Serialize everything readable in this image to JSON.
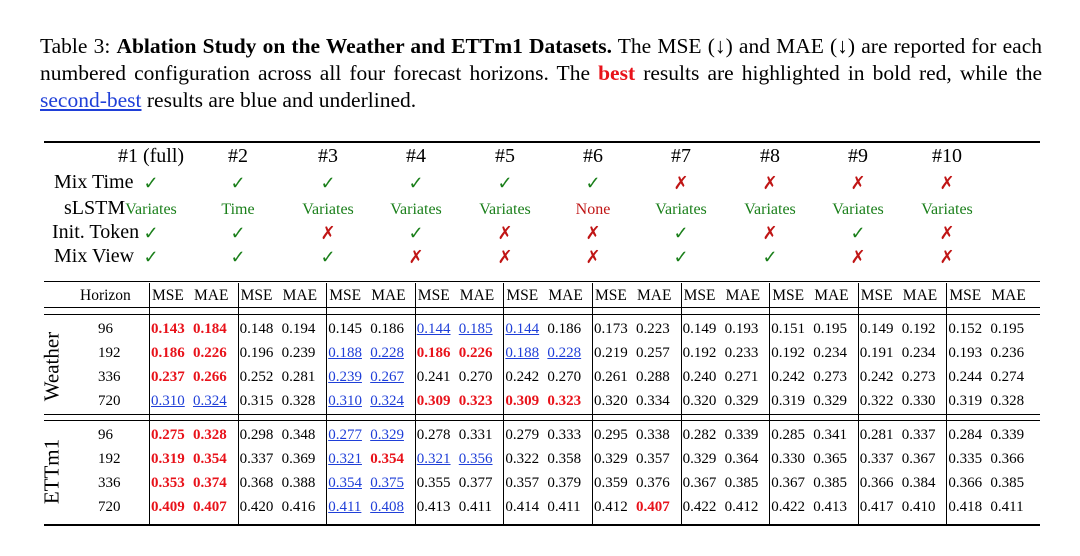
{
  "caption": {
    "prefix": "Table 3: ",
    "title": "Ablation Study on the Weather and ETTm1 Datasets.",
    "text1": " The MSE (↓) and MAE (↓) are reported for each numbered configuration across all four forecast horizons. The ",
    "best_word": "best",
    "text2": " results are highlighted in bold red, while the ",
    "second_word": "second-best",
    "text3": " results are blue and underlined."
  },
  "configs": [
    "#1 (full)",
    "#2",
    "#3",
    "#4",
    "#5",
    "#6",
    "#7",
    "#8",
    "#9",
    "#10"
  ],
  "row_labels": {
    "mix_time": "Mix Time",
    "slstm": "sLSTM",
    "init_token": "Init. Token",
    "mix_view": "Mix View",
    "horizon": "Horizon"
  },
  "mix_time": [
    "✓",
    "✓",
    "✓",
    "✓",
    "✓",
    "✓",
    "✗",
    "✗",
    "✗",
    "✗"
  ],
  "slstm": [
    "Variates",
    "Time",
    "Variates",
    "Variates",
    "Variates",
    "None",
    "Variates",
    "Variates",
    "Variates",
    "Variates"
  ],
  "init_token": [
    "✓",
    "✓",
    "✗",
    "✓",
    "✗",
    "✗",
    "✓",
    "✗",
    "✓",
    "✗"
  ],
  "mix_view": [
    "✓",
    "✓",
    "✓",
    "✗",
    "✗",
    "✗",
    "✓",
    "✓",
    "✗",
    "✗"
  ],
  "metric_labels": {
    "mse": "MSE",
    "mae": "MAE"
  },
  "groups": [
    {
      "name": "Weather",
      "rows": [
        {
          "h": "96",
          "v": [
            [
              "0.143",
              "b"
            ],
            [
              "0.184",
              "b"
            ],
            [
              "0.148",
              ""
            ],
            [
              "0.194",
              ""
            ],
            [
              "0.145",
              ""
            ],
            [
              "0.186",
              ""
            ],
            [
              "0.144",
              "s"
            ],
            [
              "0.185",
              "s"
            ],
            [
              "0.144",
              "s"
            ],
            [
              "0.186",
              ""
            ],
            [
              "0.173",
              ""
            ],
            [
              "0.223",
              ""
            ],
            [
              "0.149",
              ""
            ],
            [
              "0.193",
              ""
            ],
            [
              "0.151",
              ""
            ],
            [
              "0.195",
              ""
            ],
            [
              "0.149",
              ""
            ],
            [
              "0.192",
              ""
            ],
            [
              "0.152",
              ""
            ],
            [
              "0.195",
              ""
            ]
          ]
        },
        {
          "h": "192",
          "v": [
            [
              "0.186",
              "b"
            ],
            [
              "0.226",
              "b"
            ],
            [
              "0.196",
              ""
            ],
            [
              "0.239",
              ""
            ],
            [
              "0.188",
              "s"
            ],
            [
              "0.228",
              "s"
            ],
            [
              "0.186",
              "b"
            ],
            [
              "0.226",
              "b"
            ],
            [
              "0.188",
              "s"
            ],
            [
              "0.228",
              "s"
            ],
            [
              "0.219",
              ""
            ],
            [
              "0.257",
              ""
            ],
            [
              "0.192",
              ""
            ],
            [
              "0.233",
              ""
            ],
            [
              "0.192",
              ""
            ],
            [
              "0.234",
              ""
            ],
            [
              "0.191",
              ""
            ],
            [
              "0.234",
              ""
            ],
            [
              "0.193",
              ""
            ],
            [
              "0.236",
              ""
            ]
          ]
        },
        {
          "h": "336",
          "v": [
            [
              "0.237",
              "b"
            ],
            [
              "0.266",
              "b"
            ],
            [
              "0.252",
              ""
            ],
            [
              "0.281",
              ""
            ],
            [
              "0.239",
              "s"
            ],
            [
              "0.267",
              "s"
            ],
            [
              "0.241",
              ""
            ],
            [
              "0.270",
              ""
            ],
            [
              "0.242",
              ""
            ],
            [
              "0.270",
              ""
            ],
            [
              "0.261",
              ""
            ],
            [
              "0.288",
              ""
            ],
            [
              "0.240",
              ""
            ],
            [
              "0.271",
              ""
            ],
            [
              "0.242",
              ""
            ],
            [
              "0.273",
              ""
            ],
            [
              "0.242",
              ""
            ],
            [
              "0.273",
              ""
            ],
            [
              "0.244",
              ""
            ],
            [
              "0.274",
              ""
            ]
          ]
        },
        {
          "h": "720",
          "v": [
            [
              "0.310",
              "s"
            ],
            [
              "0.324",
              "s"
            ],
            [
              "0.315",
              ""
            ],
            [
              "0.328",
              ""
            ],
            [
              "0.310",
              "s"
            ],
            [
              "0.324",
              "s"
            ],
            [
              "0.309",
              "b"
            ],
            [
              "0.323",
              "b"
            ],
            [
              "0.309",
              "b"
            ],
            [
              "0.323",
              "b"
            ],
            [
              "0.320",
              ""
            ],
            [
              "0.334",
              ""
            ],
            [
              "0.320",
              ""
            ],
            [
              "0.329",
              ""
            ],
            [
              "0.319",
              ""
            ],
            [
              "0.329",
              ""
            ],
            [
              "0.322",
              ""
            ],
            [
              "0.330",
              ""
            ],
            [
              "0.319",
              ""
            ],
            [
              "0.328",
              ""
            ]
          ]
        }
      ]
    },
    {
      "name": "ETTm1",
      "rows": [
        {
          "h": "96",
          "v": [
            [
              "0.275",
              "b"
            ],
            [
              "0.328",
              "b"
            ],
            [
              "0.298",
              ""
            ],
            [
              "0.348",
              ""
            ],
            [
              "0.277",
              "s"
            ],
            [
              "0.329",
              "s"
            ],
            [
              "0.278",
              ""
            ],
            [
              "0.331",
              ""
            ],
            [
              "0.279",
              ""
            ],
            [
              "0.333",
              ""
            ],
            [
              "0.295",
              ""
            ],
            [
              "0.338",
              ""
            ],
            [
              "0.282",
              ""
            ],
            [
              "0.339",
              ""
            ],
            [
              "0.285",
              ""
            ],
            [
              "0.341",
              ""
            ],
            [
              "0.281",
              ""
            ],
            [
              "0.337",
              ""
            ],
            [
              "0.284",
              ""
            ],
            [
              "0.339",
              ""
            ]
          ]
        },
        {
          "h": "192",
          "v": [
            [
              "0.319",
              "b"
            ],
            [
              "0.354",
              "b"
            ],
            [
              "0.337",
              ""
            ],
            [
              "0.369",
              ""
            ],
            [
              "0.321",
              "s"
            ],
            [
              "0.354",
              "b"
            ],
            [
              "0.321",
              "s"
            ],
            [
              "0.356",
              "s"
            ],
            [
              "0.322",
              ""
            ],
            [
              "0.358",
              ""
            ],
            [
              "0.329",
              ""
            ],
            [
              "0.357",
              ""
            ],
            [
              "0.329",
              ""
            ],
            [
              "0.364",
              ""
            ],
            [
              "0.330",
              ""
            ],
            [
              "0.365",
              ""
            ],
            [
              "0.337",
              ""
            ],
            [
              "0.367",
              ""
            ],
            [
              "0.335",
              ""
            ],
            [
              "0.366",
              ""
            ]
          ]
        },
        {
          "h": "336",
          "v": [
            [
              "0.353",
              "b"
            ],
            [
              "0.374",
              "b"
            ],
            [
              "0.368",
              ""
            ],
            [
              "0.388",
              ""
            ],
            [
              "0.354",
              "s"
            ],
            [
              "0.375",
              "s"
            ],
            [
              "0.355",
              ""
            ],
            [
              "0.377",
              ""
            ],
            [
              "0.357",
              ""
            ],
            [
              "0.379",
              ""
            ],
            [
              "0.359",
              ""
            ],
            [
              "0.376",
              ""
            ],
            [
              "0.367",
              ""
            ],
            [
              "0.385",
              ""
            ],
            [
              "0.367",
              ""
            ],
            [
              "0.385",
              ""
            ],
            [
              "0.366",
              ""
            ],
            [
              "0.384",
              ""
            ],
            [
              "0.366",
              ""
            ],
            [
              "0.385",
              ""
            ]
          ]
        },
        {
          "h": "720",
          "v": [
            [
              "0.409",
              "b"
            ],
            [
              "0.407",
              "b"
            ],
            [
              "0.420",
              ""
            ],
            [
              "0.416",
              ""
            ],
            [
              "0.411",
              "s"
            ],
            [
              "0.408",
              "s"
            ],
            [
              "0.413",
              ""
            ],
            [
              "0.411",
              ""
            ],
            [
              "0.414",
              ""
            ],
            [
              "0.411",
              ""
            ],
            [
              "0.412",
              ""
            ],
            [
              "0.407",
              "b"
            ],
            [
              "0.422",
              ""
            ],
            [
              "0.412",
              ""
            ],
            [
              "0.422",
              ""
            ],
            [
              "0.413",
              ""
            ],
            [
              "0.417",
              ""
            ],
            [
              "0.410",
              ""
            ],
            [
              "0.418",
              ""
            ],
            [
              "0.411",
              ""
            ]
          ]
        }
      ]
    }
  ],
  "colors": {
    "best": "#e8121a",
    "second": "#1f3fd8",
    "check": "#1a7f1a",
    "cross": "#c01515"
  }
}
